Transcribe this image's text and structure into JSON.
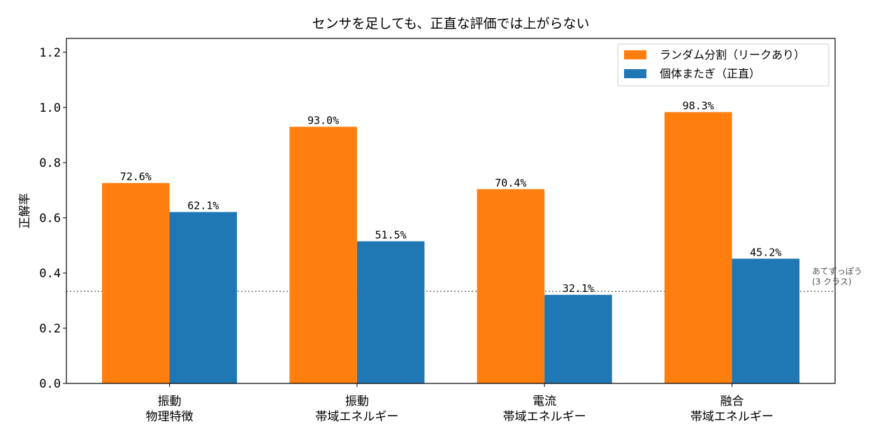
{
  "chart_data": {
    "type": "bar",
    "title": "センサを足しても、正直な評価では上がらない",
    "ylabel": "正解率",
    "xlabel": "",
    "ylim": [
      0,
      1.25
    ],
    "yticks": [
      "0.0",
      "0.2",
      "0.4",
      "0.6",
      "0.8",
      "1.0",
      "1.2"
    ],
    "categories": [
      [
        "振動",
        "物理特徴"
      ],
      [
        "振動",
        "帯域エネルギー"
      ],
      [
        "電流",
        "帯域エネルギー"
      ],
      [
        "融合",
        "帯域エネルギー"
      ]
    ],
    "series": [
      {
        "name": "ランダム分割（リークあり）",
        "color": "#ff7f0e",
        "values": [
          0.726,
          0.93,
          0.704,
          0.983
        ],
        "labels": [
          "72.6%",
          "93.0%",
          "70.4%",
          "98.3%"
        ]
      },
      {
        "name": "個体またぎ（正直）",
        "color": "#1f77b4",
        "values": [
          0.621,
          0.515,
          0.321,
          0.452
        ],
        "labels": [
          "62.1%",
          "51.5%",
          "32.1%",
          "45.2%"
        ]
      }
    ],
    "reference_line": {
      "value": 0.3333,
      "label_lines": [
        "あてずっぽう",
        "(3 クラス)"
      ],
      "color": "#555555"
    },
    "legend_position": "top-right",
    "grid": false
  }
}
